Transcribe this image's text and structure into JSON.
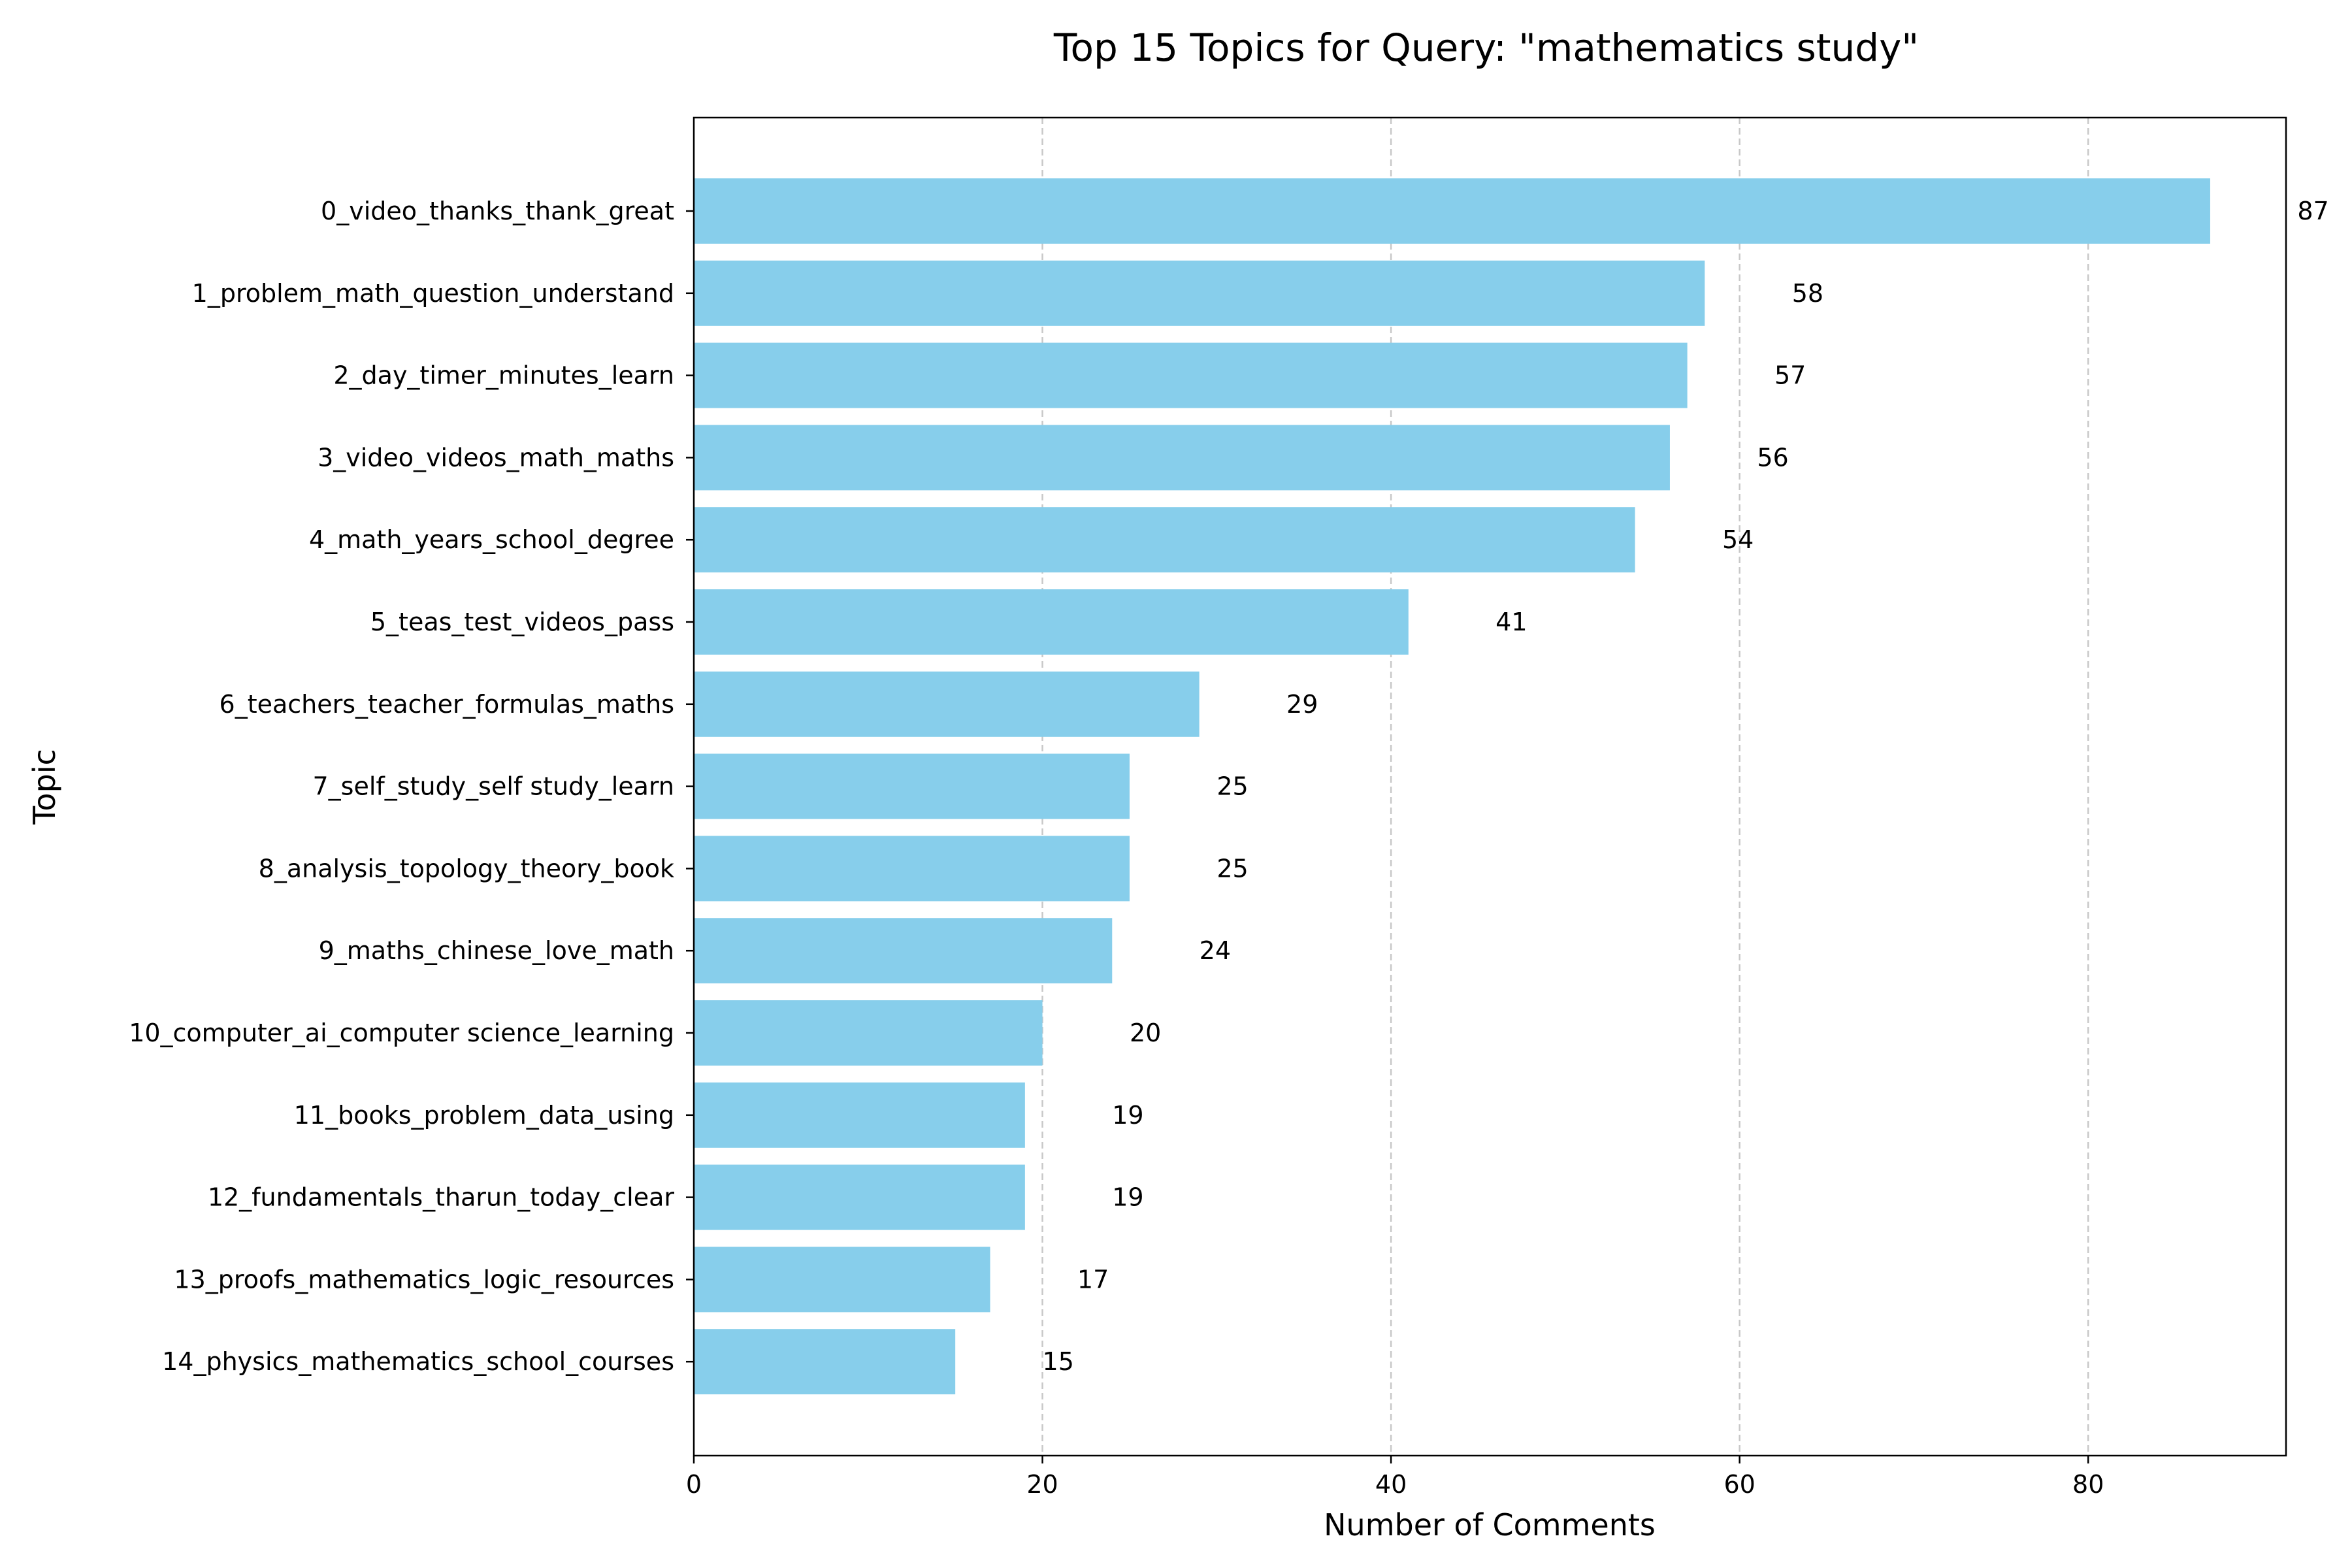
{
  "chart_data": {
    "type": "bar",
    "orientation": "horizontal",
    "title": "Top 15 Topics for Query: \"mathematics study\"",
    "xlabel": "Number of Comments",
    "ylabel": "Topic",
    "categories": [
      "0_video_thanks_thank_great",
      "1_problem_math_question_understand",
      "2_day_timer_minutes_learn",
      "3_video_videos_math_maths",
      "4_math_years_school_degree",
      "5_teas_test_videos_pass",
      "6_teachers_teacher_formulas_maths",
      "7_self_study_self study_learn",
      "8_analysis_topology_theory_book",
      "9_maths_chinese_love_math",
      "10_computer_ai_computer science_learning",
      "11_books_problem_data_using",
      "12_fundamentals_tharun_today_clear",
      "13_proofs_mathematics_logic_resources",
      "14_physics_mathematics_school_courses"
    ],
    "values": [
      87,
      58,
      57,
      56,
      54,
      41,
      29,
      25,
      25,
      24,
      20,
      19,
      19,
      17,
      15
    ],
    "xlim": [
      0,
      91.35
    ],
    "xticks": [
      0,
      20,
      40,
      60,
      80
    ],
    "grid": "x-dashed",
    "bar_color": "#87CEEB",
    "grid_color": "#c8c8c8"
  }
}
